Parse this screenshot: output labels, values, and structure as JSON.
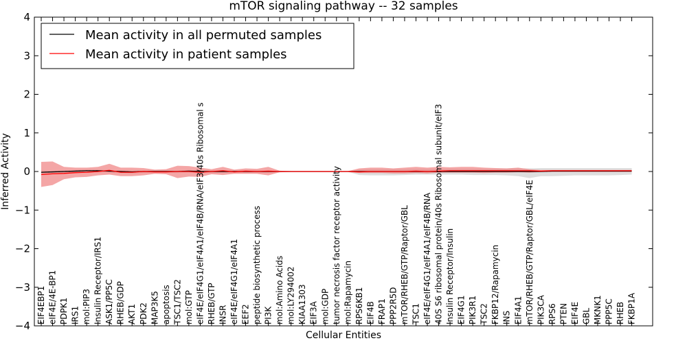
{
  "chart_data": {
    "type": "line",
    "title": "mTOR signaling pathway -- 32 samples",
    "xlabel": "Cellular Entities",
    "ylabel": "Inferred Activity",
    "ylim": [
      -4,
      4
    ],
    "yticks": [
      -4,
      -3,
      -2,
      -1,
      0,
      1,
      2,
      3,
      4
    ],
    "ytick_labels": [
      "−4",
      "−3",
      "−2",
      "−1",
      "0",
      "1",
      "2",
      "3",
      "4"
    ],
    "grid": false,
    "legend_position": "top-left",
    "categories": [
      "EIF4EBP1",
      "eIF4E/4E-BP1",
      "PDPK1",
      "IRS1",
      "mol:PIP3",
      "Insulin Receptor/IRS1",
      "ASK1/PP5C",
      "RHEB/GDP",
      "AKT1",
      "PDK2",
      "MAP3K5",
      "apoptosis",
      "TSC1/TSC2",
      "mol:GTP",
      "eIF4E/eIF4G1/eIF4A1/eIF4B/RNA/eIF3/40s Ribosomal s",
      "RHEB/GTP",
      "INSR",
      "eIF4E/eIF4G1/eIF4A1",
      "EEF2",
      "peptide biosynthetic process",
      "PI3K",
      "mol:Amino Acids",
      "mol:LY294002",
      "KIAA1303",
      "EIF3A",
      "mol:GDP",
      "tumor necrosis factor receptor activity",
      "mol:Rapamycin",
      "RPS6KB1",
      "EIF4B",
      "FRAP1",
      "PPP2R5D",
      "mTOR/RHEB/GTP/Raptor/GBL",
      "TSC1",
      "eIF4E/eIF4G1/eIF4A1/eIF4B/RNA",
      "40S S6 ribosomal protein/40s Ribosomal subunit/eIF3",
      "Insulin Receptor/Insulin",
      "EIF4G1",
      "PIK3R1",
      "TSC2",
      "FKBP12/Rapamycin",
      "INS",
      "EIF4A1",
      "mTOR/RHEB/GTP/Raptor/GBL/eIF4E",
      "PIK3CA",
      "RPS6",
      "PTEN",
      "EIF4E",
      "GBL",
      "MKNK1",
      "PPP5C",
      "RHEB",
      "FKBP1A"
    ],
    "series": [
      {
        "name": "Mean activity in all permuted samples",
        "color": "#000000",
        "values": [
          -0.02,
          -0.01,
          0.0,
          0.01,
          0.02,
          0.02,
          0.01,
          0.0,
          -0.01,
          0.0,
          0.0,
          0.0,
          0.0,
          0.01,
          0.0,
          0.0,
          0.0,
          0.0,
          0.0,
          0.0,
          0.0,
          0.0,
          0.0,
          0.0,
          0.0,
          0.0,
          0.0,
          0.0,
          0.0,
          0.0,
          0.0,
          0.0,
          0.0,
          0.0,
          0.0,
          0.0,
          0.0,
          0.0,
          0.0,
          0.0,
          0.0,
          0.0,
          0.0,
          0.0,
          0.0,
          0.01,
          0.01,
          0.01,
          0.01,
          0.01,
          0.01,
          0.01,
          0.01
        ],
        "band_upper": [
          0.03,
          0.02,
          0.03,
          0.04,
          0.05,
          0.05,
          0.04,
          0.03,
          0.02,
          0.03,
          0.03,
          0.03,
          0.03,
          0.04,
          0.03,
          0.03,
          0.03,
          0.03,
          0.03,
          0.03,
          0.02,
          0.01,
          0.01,
          0.01,
          0.01,
          0.01,
          0.01,
          0.01,
          0.05,
          0.06,
          0.06,
          0.06,
          0.06,
          0.06,
          0.06,
          0.06,
          0.07,
          0.07,
          0.07,
          0.07,
          0.07,
          0.08,
          0.08,
          0.08,
          0.09,
          0.09,
          0.09,
          0.09,
          0.09,
          0.09,
          0.09,
          0.09,
          0.09
        ],
        "band_lower": [
          -0.07,
          -0.05,
          -0.04,
          -0.03,
          -0.02,
          -0.02,
          -0.03,
          -0.04,
          -0.05,
          -0.04,
          -0.04,
          -0.04,
          -0.04,
          -0.03,
          -0.04,
          -0.04,
          -0.04,
          -0.04,
          -0.04,
          -0.04,
          -0.03,
          -0.01,
          -0.01,
          -0.01,
          -0.01,
          -0.01,
          -0.01,
          -0.01,
          -0.09,
          -0.1,
          -0.1,
          -0.1,
          -0.09,
          -0.08,
          -0.08,
          -0.08,
          -0.08,
          -0.08,
          -0.09,
          -0.09,
          -0.09,
          -0.1,
          -0.12,
          -0.17,
          -0.12,
          -0.12,
          -0.11,
          -0.1,
          -0.1,
          -0.1,
          -0.1,
          -0.09,
          -0.08
        ],
        "band_color": "#c8c8c8"
      },
      {
        "name": "Mean activity in patient samples",
        "color": "#ff0000",
        "values": [
          -0.08,
          -0.06,
          -0.05,
          -0.03,
          -0.02,
          0.0,
          0.03,
          -0.02,
          -0.02,
          0.0,
          -0.01,
          -0.01,
          0.0,
          0.0,
          -0.02,
          0.0,
          0.02,
          -0.01,
          0.01,
          0.0,
          0.01,
          0.0,
          0.0,
          0.0,
          0.0,
          0.0,
          0.0,
          0.0,
          -0.01,
          0.0,
          0.0,
          0.0,
          0.0,
          0.01,
          0.0,
          0.01,
          0.02,
          0.02,
          0.02,
          0.02,
          0.02,
          0.02,
          0.02,
          0.02,
          0.01,
          0.02,
          0.02,
          0.02,
          0.02,
          0.02,
          0.02,
          0.02,
          0.02
        ],
        "band_upper": [
          0.25,
          0.26,
          0.12,
          0.1,
          0.1,
          0.12,
          0.2,
          0.1,
          0.1,
          0.09,
          0.05,
          0.06,
          0.15,
          0.14,
          0.1,
          0.06,
          0.12,
          0.05,
          0.08,
          0.07,
          0.12,
          0.02,
          0.01,
          0.01,
          0.01,
          0.01,
          0.01,
          0.01,
          0.08,
          0.1,
          0.1,
          0.08,
          0.1,
          0.12,
          0.1,
          0.12,
          0.11,
          0.12,
          0.12,
          0.1,
          0.09,
          0.08,
          0.1,
          0.06,
          0.04,
          0.04,
          0.04,
          0.04,
          0.04,
          0.04,
          0.04,
          0.04,
          0.04
        ],
        "band_lower": [
          -0.4,
          -0.35,
          -0.2,
          -0.15,
          -0.14,
          -0.1,
          -0.08,
          -0.12,
          -0.12,
          -0.1,
          -0.06,
          -0.07,
          -0.17,
          -0.13,
          -0.14,
          -0.07,
          -0.09,
          -0.06,
          -0.06,
          -0.06,
          -0.1,
          -0.02,
          -0.01,
          -0.01,
          -0.01,
          -0.01,
          -0.01,
          -0.01,
          -0.04,
          -0.04,
          -0.04,
          -0.05,
          -0.05,
          -0.04,
          -0.05,
          -0.03,
          -0.03,
          -0.03,
          -0.03,
          -0.04,
          -0.03,
          -0.03,
          -0.02,
          -0.03,
          -0.01,
          -0.01,
          -0.01,
          -0.01,
          -0.01,
          -0.01,
          -0.01,
          -0.01,
          -0.01
        ],
        "band_color": "#f08080"
      }
    ]
  }
}
